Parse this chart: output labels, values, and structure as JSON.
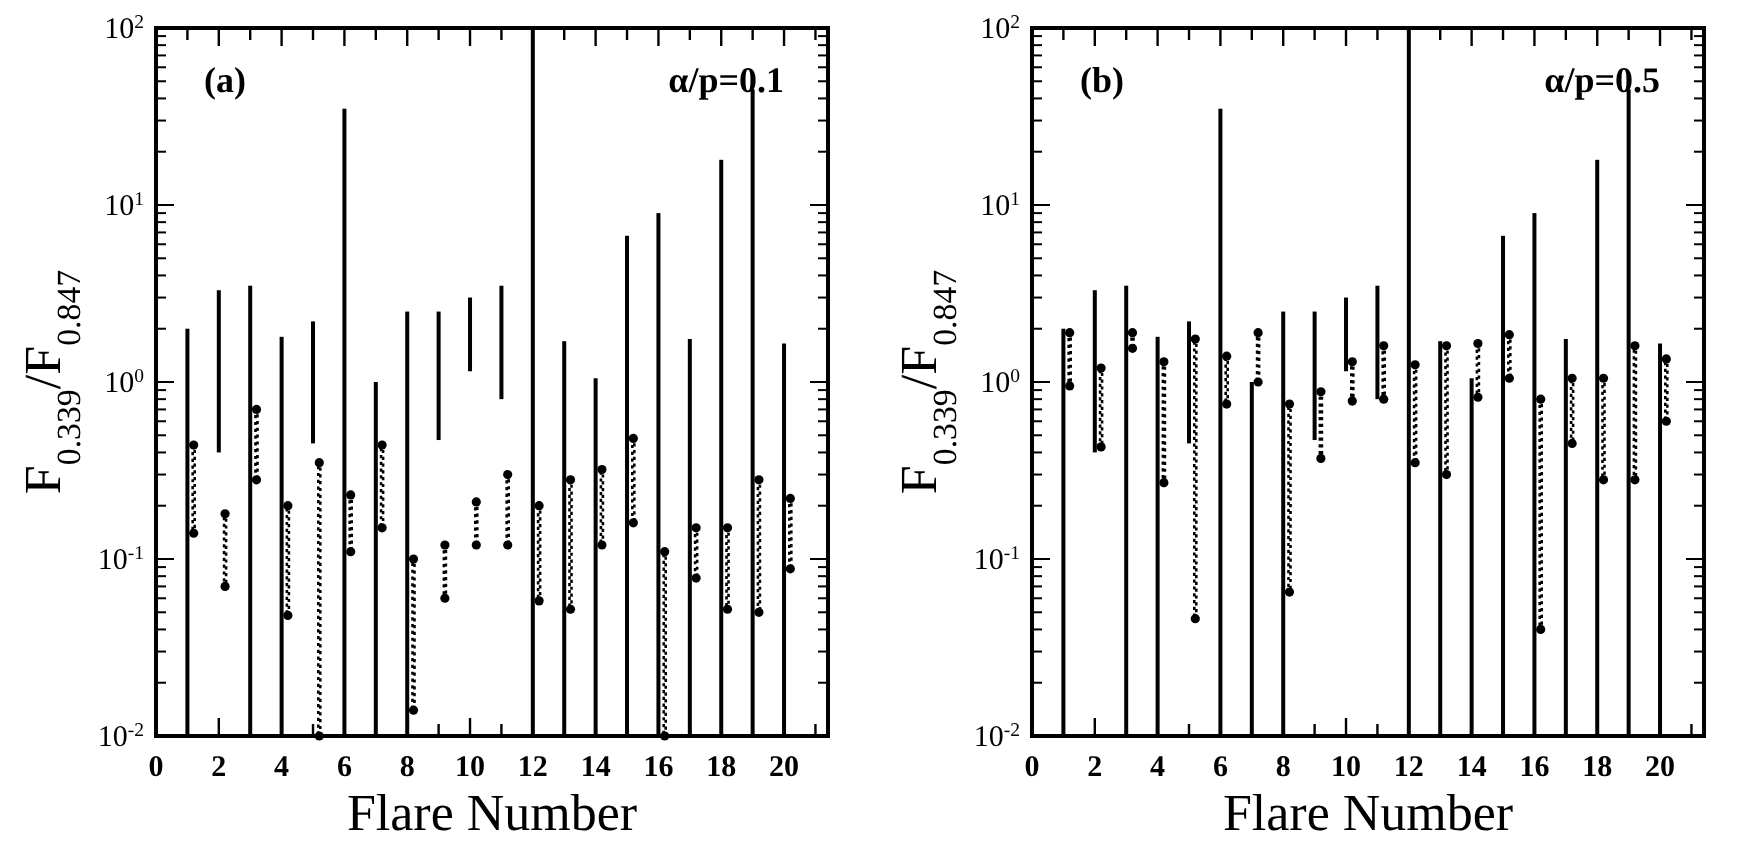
{
  "chart_data": [
    {
      "type": "bar",
      "xlabel": "Flare Number",
      "ylabel": "F$_{0.339}$/F$_{0.847}$",
      "annotations": [
        "(a)",
        "α/p=0.1"
      ],
      "log": true,
      "xlim": [
        0,
        21.4
      ],
      "xticks": [
        0,
        {
          "value": 1,
          "label": null
        },
        2,
        {
          "value": 3,
          "label": null
        },
        4,
        {
          "value": 5,
          "label": null
        },
        6,
        {
          "value": 7,
          "label": null
        },
        8,
        {
          "value": 9,
          "label": null
        },
        10,
        {
          "value": 11,
          "label": null
        },
        12,
        {
          "value": 13,
          "label": null
        },
        14,
        {
          "value": 15,
          "label": null
        },
        16,
        {
          "value": 17,
          "label": null
        },
        18,
        {
          "value": 19,
          "label": null
        },
        20,
        {
          "value": 21,
          "label": null
        }
      ],
      "ylim": [
        0.01,
        100
      ],
      "yticks": [
        {
          "value": 0.01,
          "label": "10$^{-2}$"
        },
        {
          "value": 0.02,
          "label": null
        },
        {
          "value": 0.03,
          "label": null
        },
        {
          "value": 0.04,
          "label": null
        },
        {
          "value": 0.05,
          "label": null
        },
        {
          "value": 0.06,
          "label": null
        },
        {
          "value": 0.07,
          "label": null
        },
        {
          "value": 0.08,
          "label": null
        },
        {
          "value": 0.09,
          "label": null
        },
        {
          "value": 0.1,
          "label": "10$^{-1}$"
        },
        {
          "value": 0.2,
          "label": null
        },
        {
          "value": 0.3,
          "label": null
        },
        {
          "value": 0.4,
          "label": null
        },
        {
          "value": 0.5,
          "label": null
        },
        {
          "value": 0.6,
          "label": null
        },
        {
          "value": 0.7,
          "label": null
        },
        {
          "value": 0.8,
          "label": null
        },
        {
          "value": 0.9,
          "label": null
        },
        {
          "value": 1,
          "label": "10$^{0}$"
        },
        {
          "value": 2,
          "label": null
        },
        {
          "value": 3,
          "label": null
        },
        {
          "value": 4,
          "label": null
        },
        {
          "value": 5,
          "label": null
        },
        {
          "value": 6,
          "label": null
        },
        {
          "value": 7,
          "label": null
        },
        {
          "value": 8,
          "label": null
        },
        {
          "value": 9,
          "label": null
        },
        {
          "value": 10,
          "label": "10$^{1}$"
        },
        {
          "value": 20,
          "label": null
        },
        {
          "value": 30,
          "label": null
        },
        {
          "value": 40,
          "label": null
        },
        {
          "value": 50,
          "label": null
        },
        {
          "value": 60,
          "label": null
        },
        {
          "value": 70,
          "label": null
        },
        {
          "value": 80,
          "label": null
        },
        {
          "value": 90,
          "label": null
        },
        {
          "value": 100,
          "label": "10$^{2}$"
        }
      ],
      "series": [
        {
          "color": "#000000",
          "line_style": "solid",
          "marker": "none",
          "x": [
            1,
            2,
            3,
            4,
            5,
            6,
            7,
            8,
            9,
            10,
            11,
            12,
            13,
            14,
            15,
            16,
            17,
            18,
            19,
            20
          ],
          "base": [
            0.01,
            0.4,
            0.01,
            0.01,
            0.45,
            0.01,
            0.01,
            0.01,
            0.47,
            1.15,
            0.8,
            0.01,
            0.01,
            0.01,
            0.01,
            0.01,
            0.01,
            0.01,
            0.01,
            0.01
          ],
          "values": [
            1.99,
            2.9,
            3.49,
            1.79,
            1.75,
            34.99,
            0.99,
            2.49,
            2.03,
            1.85,
            2.7,
            99.99,
            1.69,
            1.04,
            6.69,
            8.99,
            1.74,
            17.99,
            44.99,
            1.64
          ]
        },
        {
          "color": "#000000",
          "line_style": "dotted",
          "marker": "circle",
          "x": [
            1.2,
            2.2,
            3.2,
            4.2,
            5.2,
            6.2,
            7.2,
            8.2,
            9.2,
            10.2,
            11.2,
            12.2,
            13.2,
            14.2,
            15.2,
            16.2,
            17.2,
            18.2,
            19.2,
            20.2
          ],
          "base": [
            0.14,
            0.07,
            0.28,
            0.048,
            0.01,
            0.11,
            0.15,
            0.014,
            0.06,
            0.12,
            0.12,
            0.058,
            0.052,
            0.12,
            0.16,
            0.01,
            0.078,
            0.052,
            0.05,
            0.088
          ],
          "values": [
            0.3,
            0.11,
            0.42,
            0.152,
            0.34,
            0.12,
            0.29,
            0.086,
            0.06,
            0.09,
            0.18,
            0.142,
            0.228,
            0.2,
            0.32,
            0.1,
            0.072,
            0.098,
            0.23,
            0.132
          ]
        }
      ]
    },
    {
      "type": "bar",
      "xlabel": "Flare Number",
      "ylabel": "F$_{0.339}$/F$_{0.847}$",
      "annotations": [
        "(b)",
        "α/p=0.5"
      ],
      "log": true,
      "xlim": [
        0,
        21.4
      ],
      "xticks": [
        0,
        {
          "value": 1,
          "label": null
        },
        2,
        {
          "value": 3,
          "label": null
        },
        4,
        {
          "value": 5,
          "label": null
        },
        6,
        {
          "value": 7,
          "label": null
        },
        8,
        {
          "value": 9,
          "label": null
        },
        10,
        {
          "value": 11,
          "label": null
        },
        12,
        {
          "value": 13,
          "label": null
        },
        14,
        {
          "value": 15,
          "label": null
        },
        16,
        {
          "value": 17,
          "label": null
        },
        18,
        {
          "value": 19,
          "label": null
        },
        20,
        {
          "value": 21,
          "label": null
        }
      ],
      "ylim": [
        0.01,
        100
      ],
      "yticks": [
        {
          "value": 0.01,
          "label": "10$^{-2}$"
        },
        {
          "value": 0.02,
          "label": null
        },
        {
          "value": 0.03,
          "label": null
        },
        {
          "value": 0.04,
          "label": null
        },
        {
          "value": 0.05,
          "label": null
        },
        {
          "value": 0.06,
          "label": null
        },
        {
          "value": 0.07,
          "label": null
        },
        {
          "value": 0.08,
          "label": null
        },
        {
          "value": 0.09,
          "label": null
        },
        {
          "value": 0.1,
          "label": "10$^{-1}$"
        },
        {
          "value": 0.2,
          "label": null
        },
        {
          "value": 0.3,
          "label": null
        },
        {
          "value": 0.4,
          "label": null
        },
        {
          "value": 0.5,
          "label": null
        },
        {
          "value": 0.6,
          "label": null
        },
        {
          "value": 0.7,
          "label": null
        },
        {
          "value": 0.8,
          "label": null
        },
        {
          "value": 0.9,
          "label": null
        },
        {
          "value": 1,
          "label": "10$^{0}$"
        },
        {
          "value": 2,
          "label": null
        },
        {
          "value": 3,
          "label": null
        },
        {
          "value": 4,
          "label": null
        },
        {
          "value": 5,
          "label": null
        },
        {
          "value": 6,
          "label": null
        },
        {
          "value": 7,
          "label": null
        },
        {
          "value": 8,
          "label": null
        },
        {
          "value": 9,
          "label": null
        },
        {
          "value": 10,
          "label": "10$^{1}$"
        },
        {
          "value": 20,
          "label": null
        },
        {
          "value": 30,
          "label": null
        },
        {
          "value": 40,
          "label": null
        },
        {
          "value": 50,
          "label": null
        },
        {
          "value": 60,
          "label": null
        },
        {
          "value": 70,
          "label": null
        },
        {
          "value": 80,
          "label": null
        },
        {
          "value": 90,
          "label": null
        },
        {
          "value": 100,
          "label": "10$^{2}$"
        }
      ],
      "series": [
        {
          "color": "#000000",
          "line_style": "solid",
          "marker": "none",
          "x": [
            1,
            2,
            3,
            4,
            5,
            6,
            7,
            8,
            9,
            10,
            11,
            12,
            13,
            14,
            15,
            16,
            17,
            18,
            19,
            20
          ],
          "base": [
            0.01,
            0.4,
            0.01,
            0.01,
            0.45,
            0.01,
            0.01,
            0.01,
            0.47,
            1.15,
            0.8,
            0.01,
            0.01,
            0.01,
            0.01,
            0.01,
            0.01,
            0.01,
            0.01,
            0.01
          ],
          "values": [
            1.99,
            2.9,
            3.49,
            1.79,
            1.75,
            34.99,
            0.99,
            2.49,
            2.03,
            1.85,
            2.7,
            99.99,
            1.69,
            1.04,
            6.69,
            8.99,
            1.74,
            17.99,
            44.99,
            1.64
          ]
        },
        {
          "color": "#000000",
          "line_style": "dotted",
          "marker": "circle",
          "x": [
            1.2,
            2.2,
            3.2,
            4.2,
            5.2,
            6.2,
            7.2,
            8.2,
            9.2,
            10.2,
            11.2,
            12.2,
            13.2,
            14.2,
            15.2,
            16.2,
            17.2,
            18.2,
            19.2,
            20.2
          ],
          "base": [
            0.95,
            0.43,
            1.55,
            0.27,
            0.046,
            0.75,
            1.0,
            0.065,
            0.37,
            0.78,
            0.8,
            0.35,
            0.3,
            0.82,
            1.05,
            0.04,
            0.45,
            0.28,
            0.28,
            0.6
          ],
          "values": [
            0.95,
            0.77,
            0.35,
            1.03,
            1.704,
            0.65,
            0.9,
            0.685,
            0.51,
            0.52,
            0.8,
            0.9,
            1.3,
            0.83,
            0.8,
            0.76,
            0.6,
            0.77,
            1.32,
            0.75
          ]
        }
      ]
    }
  ]
}
